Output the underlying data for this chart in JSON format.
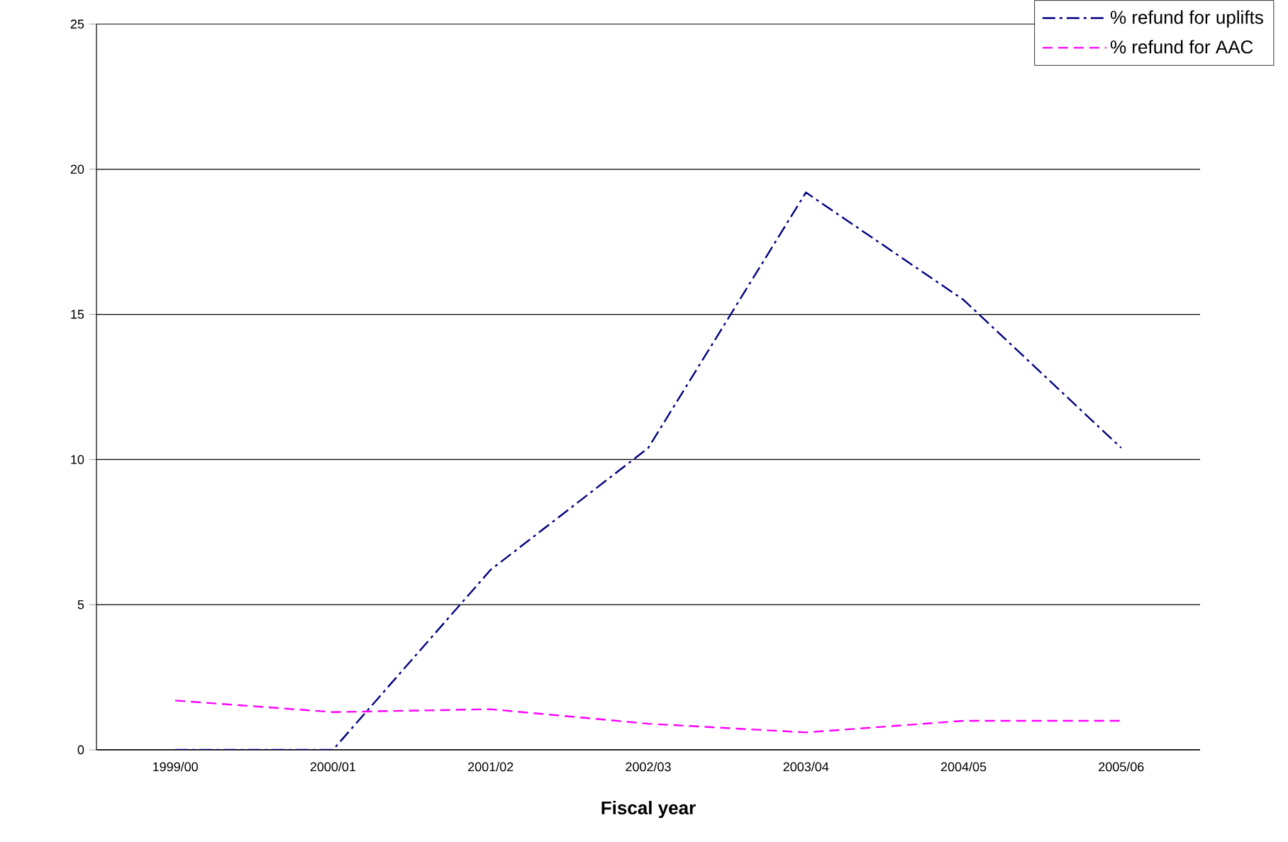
{
  "chart_data": {
    "type": "line",
    "xlabel": "Fiscal year",
    "categories": [
      "1999/00",
      "2000/01",
      "2001/02",
      "2002/03",
      "2003/04",
      "2004/05",
      "2005/06"
    ],
    "series": [
      {
        "name": "% refund for uplifts",
        "color": "#000080",
        "line_style": "dashdot",
        "values": [
          0,
          0,
          6.2,
          10.4,
          19.2,
          15.5,
          10.4
        ]
      },
      {
        "name": "% refund for AAC",
        "color": "#ff00ff",
        "line_style": "dashed",
        "values": [
          1.7,
          1.3,
          1.4,
          0.9,
          0.6,
          1.0,
          1.0
        ]
      }
    ],
    "ylim": [
      0,
      25
    ],
    "yticks": [
      0,
      5,
      10,
      15,
      20,
      25
    ],
    "grid": "y",
    "legend": "top right",
    "marker": "none"
  }
}
